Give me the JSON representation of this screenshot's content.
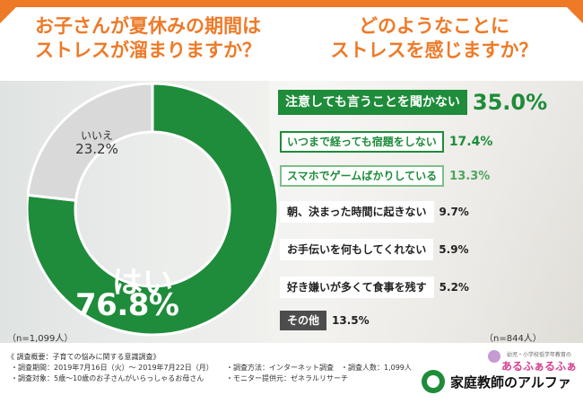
{
  "titles": {
    "left_line1": "お子さんが夏休みの期間は",
    "left_line2": "ストレスが溜まりますか？",
    "right_line1": "どのようなことに",
    "right_line2": "ストレスを感じますか？"
  },
  "colors": {
    "accent": "#ee7a28",
    "green": "#1e8c3a",
    "gray": "#d9d9d9",
    "dark_gray": "#4d4d4d"
  },
  "chart_data": [
    {
      "type": "pie",
      "title": "お子さんが夏休みの期間はストレスが溜まりますか？",
      "categories": [
        "はい",
        "いいえ"
      ],
      "values": [
        76.8,
        23.2
      ],
      "labels": {
        "yes": "はい",
        "yes_pct": "76.8%",
        "no": "いいえ",
        "no_pct": "23.2%"
      },
      "sample": "（n=1,099人）"
    },
    {
      "type": "bar",
      "title": "どのようなことにストレスを感じますか？",
      "categories": [
        "注意しても言うことを聞かない",
        "いつまで経っても宿題をしない",
        "スマホでゲームばかりしている",
        "朝、決まった時間に起きない",
        "お手伝いを何もしてくれない",
        "好き嫌いが多くて食事を残す",
        "その他"
      ],
      "values": [
        35.0,
        17.4,
        13.3,
        9.7,
        5.9,
        5.2,
        13.5
      ],
      "value_labels": [
        "35.0%",
        "17.4%",
        "13.3%",
        "9.7%",
        "5.9%",
        "5.2%",
        "13.5%"
      ],
      "sample": "（n=844人）"
    }
  ],
  "footer": {
    "heading": "《 調査概要：子育ての悩みに関する意識調査》",
    "period": "・調査期間：2019年7月16日（火）～ 2019年7月22日（月）",
    "target": "・調査対象：5歳～10歳のお子さんがいらっしゃるお母さん",
    "method": "・調査方法：インターネット調査",
    "count": "・調査人数：1,099人",
    "provider": "・モニター提供元：ゼネラルリサーチ",
    "logo": "家庭教師のアルファ",
    "sub_logo_top": "幼児・小学校低学年教育の",
    "sub_logo_main": "あるふぁるふぁ"
  }
}
